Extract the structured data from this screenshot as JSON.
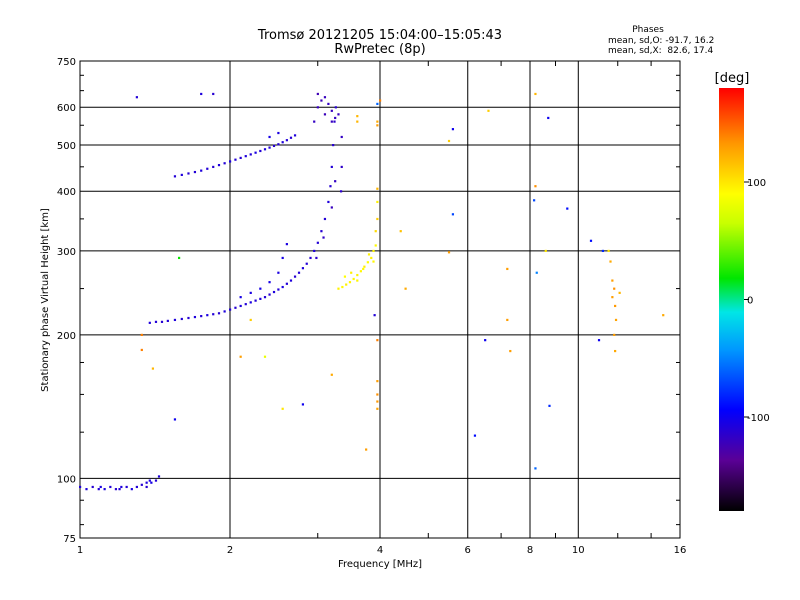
{
  "chart_data": {
    "type": "scatter",
    "title": "Tromsø 20121205 15:04:00–15:05:43",
    "subtitle": "RwPretec (8p)",
    "xlabel": "Frequency [MHz]",
    "ylabel": "Stationary phase Virtual Height [km]",
    "x_scale": "log",
    "y_scale": "log",
    "xlim": [
      1,
      16
    ],
    "ylim": [
      75,
      750
    ],
    "x_ticks": [
      1,
      2,
      4,
      6,
      8,
      10,
      16
    ],
    "y_ticks": [
      75,
      100,
      200,
      300,
      400,
      500,
      600,
      750
    ],
    "grid": true,
    "phase_info": {
      "heading": "Phases",
      "line_O": "mean, sd,O: -91.7, 16.2",
      "line_X": "mean, sd,X:  82.6, 17.4"
    },
    "colorbar": {
      "label": "[deg]",
      "range": [
        -180,
        180
      ],
      "ticks": [
        100,
        0,
        -100
      ],
      "colormap": "rainbow (black → purple → blue → cyan → green → yellow → orange → red)"
    },
    "series": [
      {
        "points": [
          [
            1.0,
            96,
            -110
          ],
          [
            1.03,
            95,
            -108
          ],
          [
            1.06,
            96,
            -112
          ],
          [
            1.09,
            95,
            -110
          ],
          [
            1.12,
            95,
            -106
          ],
          [
            1.15,
            96,
            -110
          ],
          [
            1.18,
            95,
            -112
          ],
          [
            1.21,
            96,
            -108
          ],
          [
            1.24,
            96,
            -110
          ],
          [
            1.27,
            95,
            -105
          ],
          [
            1.3,
            96,
            -110
          ],
          [
            1.33,
            97,
            -112
          ],
          [
            1.36,
            98,
            -108
          ],
          [
            1.39,
            98,
            -104
          ],
          [
            1.42,
            99,
            -110
          ],
          [
            1.44,
            101,
            -108
          ],
          [
            1.36,
            96,
            -112
          ],
          [
            1.1,
            96,
            -106
          ],
          [
            1.2,
            95,
            -110
          ],
          [
            1.38,
            99,
            -106
          ],
          [
            1.38,
            212,
            -108
          ],
          [
            1.42,
            213,
            -110
          ],
          [
            1.46,
            213,
            -112
          ],
          [
            1.5,
            214,
            -110
          ],
          [
            1.55,
            215,
            -108
          ],
          [
            1.6,
            216,
            -110
          ],
          [
            1.65,
            217,
            -112
          ],
          [
            1.7,
            218,
            -108
          ],
          [
            1.75,
            219,
            -110
          ],
          [
            1.8,
            220,
            -106
          ],
          [
            1.85,
            221,
            -110
          ],
          [
            1.9,
            222,
            -112
          ],
          [
            1.95,
            224,
            -108
          ],
          [
            2.0,
            226,
            -110
          ],
          [
            2.05,
            228,
            -112
          ],
          [
            2.1,
            230,
            -108
          ],
          [
            2.15,
            232,
            -110
          ],
          [
            2.2,
            234,
            -106
          ],
          [
            2.25,
            236,
            -110
          ],
          [
            2.3,
            238,
            -108
          ],
          [
            2.35,
            240,
            -110
          ],
          [
            2.4,
            243,
            -112
          ],
          [
            2.45,
            246,
            -108
          ],
          [
            2.5,
            249,
            -110
          ],
          [
            2.55,
            252,
            -106
          ],
          [
            2.6,
            256,
            -110
          ],
          [
            2.65,
            260,
            -108
          ],
          [
            2.7,
            265,
            -112
          ],
          [
            2.75,
            270,
            -110
          ],
          [
            2.8,
            276,
            -108
          ],
          [
            2.85,
            282,
            -110
          ],
          [
            2.9,
            290,
            -112
          ],
          [
            2.95,
            300,
            -108
          ],
          [
            3.0,
            312,
            -110
          ],
          [
            3.05,
            330,
            -112
          ],
          [
            3.1,
            350,
            -110
          ],
          [
            3.15,
            380,
            -108
          ],
          [
            3.18,
            410,
            -112
          ],
          [
            3.2,
            450,
            -110
          ],
          [
            3.22,
            500,
            -112
          ],
          [
            3.24,
            560,
            -114
          ],
          [
            3.26,
            600,
            -112
          ],
          [
            2.1,
            240,
            -104
          ],
          [
            2.2,
            245,
            -106
          ],
          [
            2.3,
            250,
            -104
          ],
          [
            2.4,
            258,
            -104
          ],
          [
            2.5,
            270,
            -106
          ],
          [
            2.55,
            290,
            -104
          ],
          [
            2.6,
            310,
            -106
          ],
          [
            2.98,
            290,
            -114
          ],
          [
            3.08,
            320,
            -116
          ],
          [
            3.2,
            370,
            -120
          ],
          [
            3.25,
            420,
            -118
          ],
          [
            1.55,
            430,
            -110
          ],
          [
            1.6,
            433,
            -108
          ],
          [
            1.65,
            436,
            -112
          ],
          [
            1.7,
            439,
            -110
          ],
          [
            1.75,
            442,
            -108
          ],
          [
            1.8,
            446,
            -110
          ],
          [
            1.85,
            450,
            -112
          ],
          [
            1.9,
            454,
            -108
          ],
          [
            1.95,
            458,
            -110
          ],
          [
            2.0,
            462,
            -106
          ],
          [
            2.05,
            466,
            -110
          ],
          [
            2.1,
            470,
            -112
          ],
          [
            2.15,
            474,
            -108
          ],
          [
            2.2,
            478,
            -110
          ],
          [
            2.25,
            482,
            -106
          ],
          [
            2.3,
            486,
            -110
          ],
          [
            2.35,
            490,
            -108
          ],
          [
            2.4,
            494,
            -110
          ],
          [
            2.45,
            498,
            -112
          ],
          [
            2.5,
            502,
            -110
          ],
          [
            2.55,
            507,
            -108
          ],
          [
            2.6,
            512,
            -110
          ],
          [
            2.65,
            518,
            -112
          ],
          [
            2.7,
            524,
            -108
          ],
          [
            2.4,
            520,
            -104
          ],
          [
            2.5,
            530,
            -106
          ],
          [
            2.95,
            560,
            -118
          ],
          [
            3.0,
            600,
            -120
          ],
          [
            3.05,
            620,
            -122
          ],
          [
            3.1,
            630,
            -120
          ],
          [
            3.15,
            610,
            -118
          ],
          [
            3.2,
            590,
            -120
          ],
          [
            3.25,
            570,
            -118
          ],
          [
            3.3,
            580,
            -120
          ],
          [
            3.0,
            640,
            -124
          ],
          [
            3.1,
            580,
            -122
          ],
          [
            3.2,
            560,
            -120
          ],
          [
            3.35,
            520,
            -118
          ],
          [
            3.35,
            450,
            -116
          ],
          [
            3.34,
            400,
            -114
          ],
          [
            1.3,
            630,
            -110
          ],
          [
            1.75,
            640,
            -108
          ],
          [
            1.85,
            640,
            -112
          ],
          [
            5.6,
            540,
            -100
          ],
          [
            8.7,
            570,
            -100
          ],
          [
            9.5,
            368,
            -90
          ],
          [
            8.15,
            383,
            -70
          ],
          [
            8.25,
            270,
            -50
          ],
          [
            8.2,
            105,
            -60
          ],
          [
            8.75,
            142,
            -80
          ],
          [
            2.8,
            143,
            -100
          ],
          [
            1.55,
            133,
            -100
          ],
          [
            3.9,
            220,
            -110
          ],
          [
            6.5,
            195,
            -100
          ],
          [
            6.2,
            123,
            -90
          ],
          [
            11.0,
            195,
            -100
          ],
          [
            3.95,
            610,
            -60
          ],
          [
            5.6,
            358,
            -70
          ],
          [
            10.6,
            315,
            -90
          ],
          [
            11.2,
            300,
            -80
          ]
        ]
      },
      {
        "points": [
          [
            3.3,
            250,
            95
          ],
          [
            3.36,
            252,
            92
          ],
          [
            3.42,
            255,
            96
          ],
          [
            3.48,
            258,
            94
          ],
          [
            3.54,
            262,
            92
          ],
          [
            3.6,
            267,
            95
          ],
          [
            3.66,
            272,
            93
          ],
          [
            3.72,
            278,
            96
          ],
          [
            3.78,
            284,
            92
          ],
          [
            3.84,
            290,
            95
          ],
          [
            3.88,
            300,
            94
          ],
          [
            3.92,
            308,
            92
          ],
          [
            3.4,
            265,
            90
          ],
          [
            3.5,
            270,
            96
          ],
          [
            3.6,
            260,
            94
          ],
          [
            3.7,
            275,
            92
          ],
          [
            3.8,
            295,
            95
          ],
          [
            3.88,
            285,
            93
          ],
          [
            3.95,
            380,
            95
          ],
          [
            3.92,
            330,
            105
          ],
          [
            3.95,
            350,
            110
          ],
          [
            3.95,
            405,
            120
          ],
          [
            3.95,
            550,
            130
          ],
          [
            3.95,
            560,
            125
          ],
          [
            3.95,
            195,
            140
          ],
          [
            3.95,
            160,
            130
          ],
          [
            3.95,
            150,
            135
          ],
          [
            3.95,
            140,
            128
          ],
          [
            3.95,
            145,
            132
          ],
          [
            4.4,
            330,
            115
          ],
          [
            4.5,
            250,
            125
          ],
          [
            5.5,
            298,
            130
          ],
          [
            5.5,
            510,
            110
          ],
          [
            6.6,
            590,
            110
          ],
          [
            7.2,
            275,
            130
          ],
          [
            7.2,
            215,
            130
          ],
          [
            7.3,
            185,
            130
          ],
          [
            8.2,
            640,
            120
          ],
          [
            8.2,
            410,
            135
          ],
          [
            8.6,
            300,
            100
          ],
          [
            11.5,
            300,
            100
          ],
          [
            11.6,
            285,
            125
          ],
          [
            11.7,
            260,
            130
          ],
          [
            11.8,
            250,
            135
          ],
          [
            11.7,
            240,
            130
          ],
          [
            11.85,
            230,
            132
          ],
          [
            11.9,
            215,
            128
          ],
          [
            11.8,
            200,
            130
          ],
          [
            11.85,
            185,
            126
          ],
          [
            12.1,
            245,
            120
          ],
          [
            14.8,
            220,
            125
          ],
          [
            1.33,
            200,
            140
          ],
          [
            1.33,
            186,
            140
          ],
          [
            2.55,
            140,
            100
          ],
          [
            3.2,
            165,
            125
          ],
          [
            3.75,
            115,
            130
          ],
          [
            1.4,
            170,
            120
          ],
          [
            2.2,
            215,
            110
          ],
          [
            2.1,
            180,
            130
          ],
          [
            3.6,
            560,
            120
          ],
          [
            3.6,
            575,
            120
          ],
          [
            4.0,
            620,
            140
          ]
        ]
      },
      {
        "points": [
          [
            1.58,
            290,
            20
          ],
          [
            2.35,
            180,
            80
          ]
        ]
      }
    ]
  }
}
